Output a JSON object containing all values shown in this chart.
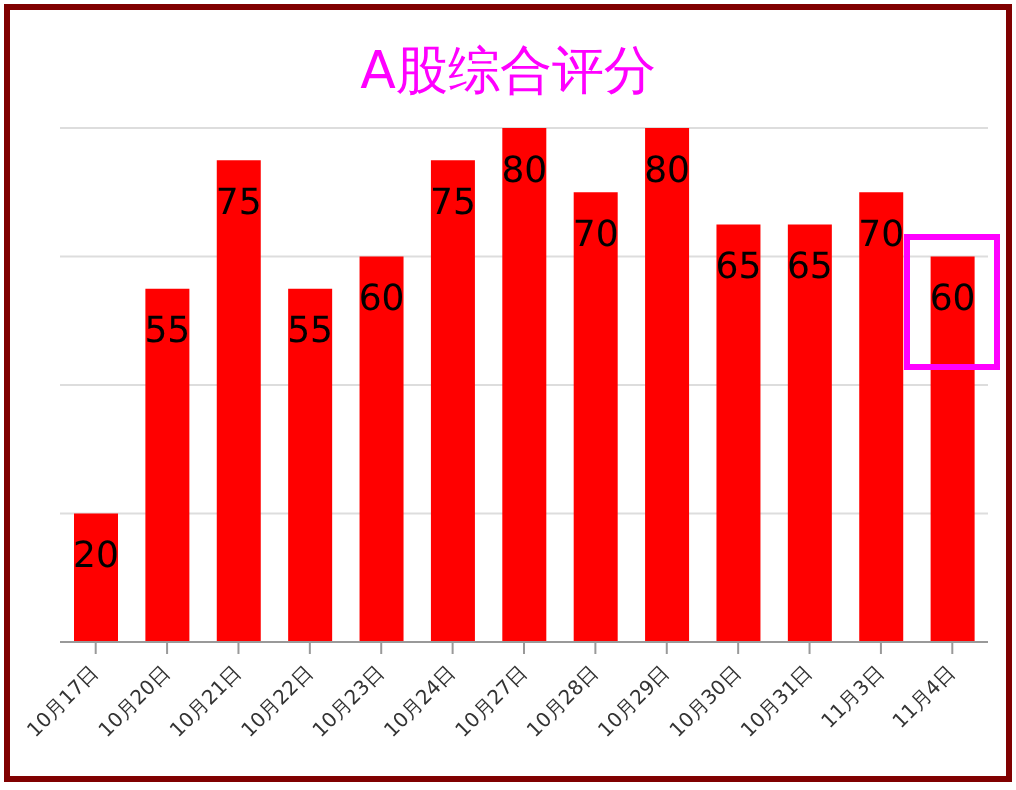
{
  "chart_data": {
    "type": "bar",
    "title": "A股综合评分",
    "categories": [
      "10月17日",
      "10月20日",
      "10月21日",
      "10月22日",
      "10月23日",
      "10月24日",
      "10月27日",
      "10月28日",
      "10月29日",
      "10月30日",
      "10月31日",
      "11月3日",
      "11月4日"
    ],
    "values": [
      20,
      55,
      75,
      55,
      60,
      75,
      80,
      70,
      80,
      65,
      65,
      70,
      60
    ],
    "color": "#ff0000",
    "ylim": [
      0,
      80
    ],
    "yticks": [
      {
        "value": 0,
        "label": null
      },
      {
        "value": 20,
        "label": null
      },
      {
        "value": 40,
        "label": null
      },
      {
        "value": 60,
        "label": null
      },
      {
        "value": 80,
        "label": null
      }
    ],
    "tick_labels": "x",
    "grid": "y",
    "data_labels": true,
    "legend": false
  }
}
